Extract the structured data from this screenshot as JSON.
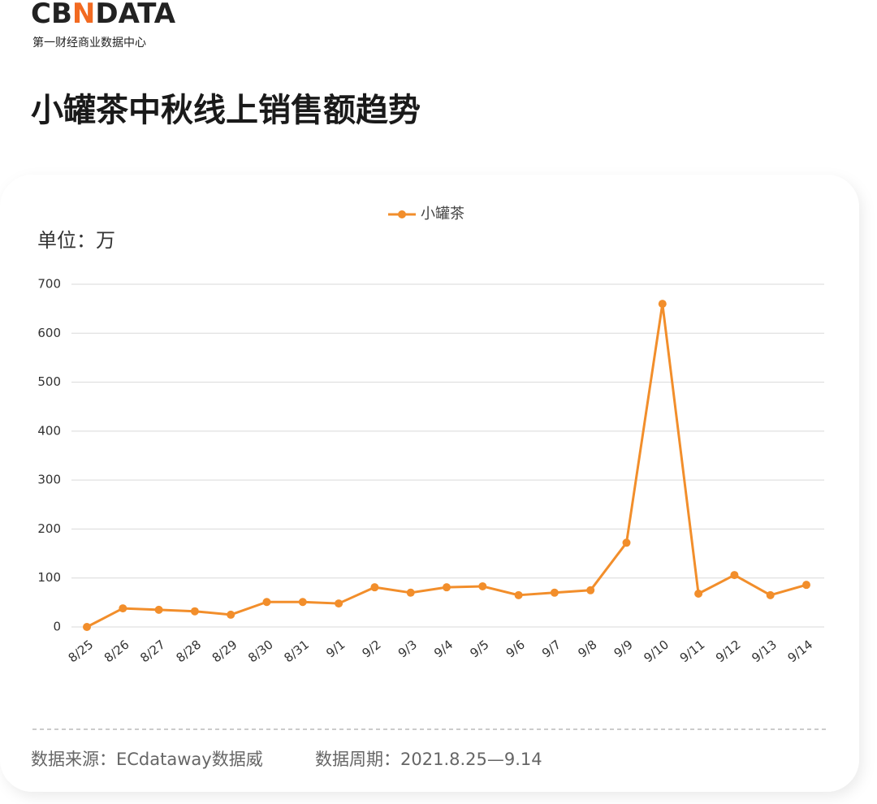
{
  "header": {
    "logo_parts": [
      "CB",
      "N",
      "DATA"
    ],
    "logo_subtitle": "第一财经商业数据中心"
  },
  "chart_data": {
    "type": "line",
    "title": "小罐茶中秋线上销售额趋势",
    "unit_label": "单位：万",
    "categories": [
      "8/25",
      "8/26",
      "8/27",
      "8/28",
      "8/29",
      "8/30",
      "8/31",
      "9/1",
      "9/2",
      "9/3",
      "9/4",
      "9/5",
      "9/6",
      "9/7",
      "9/8",
      "9/9",
      "9/10",
      "9/11",
      "9/12",
      "9/13",
      "9/14"
    ],
    "series": [
      {
        "name": "小罐茶",
        "color": "#f28e2b",
        "values": [
          0,
          38,
          35,
          32,
          25,
          51,
          51,
          48,
          81,
          70,
          81,
          83,
          65,
          70,
          75,
          172,
          660,
          68,
          106,
          65,
          86
        ]
      }
    ],
    "ylim": [
      0,
      700
    ],
    "yticks": [
      0,
      100,
      200,
      300,
      400,
      500,
      600,
      700
    ],
    "grid": true,
    "legend": "top"
  },
  "footer": {
    "source": "数据来源：ECdataway数据威",
    "period": "数据周期：2021.8.25—9.14"
  }
}
